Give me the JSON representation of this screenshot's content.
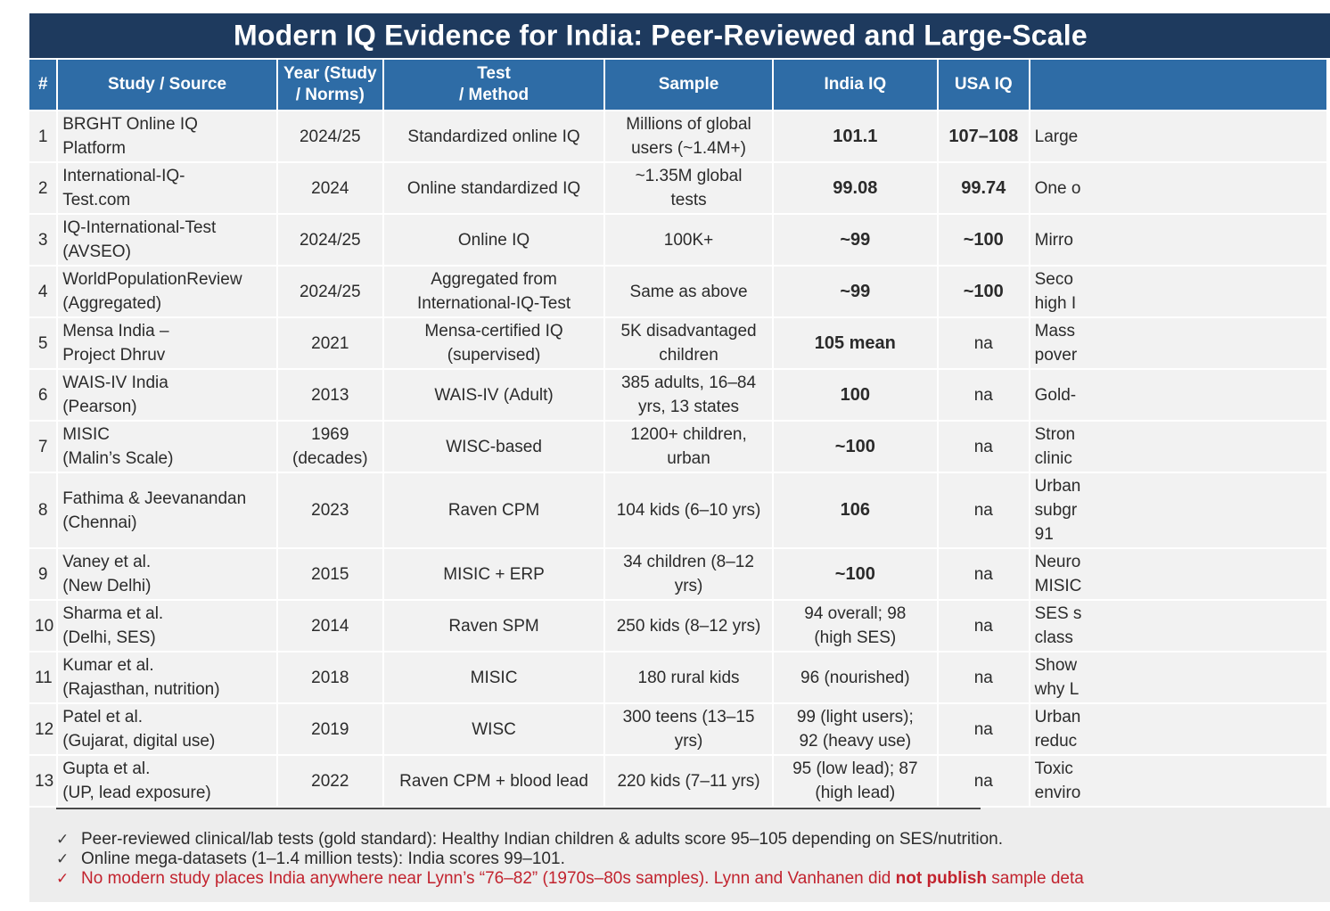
{
  "colors": {
    "title_bg": "#1e3a5e",
    "header_bg": "#2e6ca6",
    "row_bg": "#f2f2f2",
    "band_bg": "#ededed",
    "text": "#2b2b2b",
    "red": "#c2232e"
  },
  "chart_data": {
    "type": "table",
    "title": "Modern IQ Evidence for India: Peer-Reviewed and Large-Scale",
    "columns": [
      {
        "label": "#"
      },
      {
        "label": "Study / Source"
      },
      {
        "label": "Year (Study\n/ Norms)"
      },
      {
        "label": "Test\n/ Method"
      },
      {
        "label": "Sample"
      },
      {
        "label": "India IQ"
      },
      {
        "label": "USA IQ"
      },
      {
        "label": ""
      }
    ],
    "rows": [
      {
        "num": "1",
        "study": "BRGHT Online IQ\nPlatform",
        "year": "2024/25",
        "test": "Standardized online IQ",
        "sample": "Millions of global\nusers (~1.4M+)",
        "india_iq": "101.1",
        "india_iq_bold": true,
        "usa_iq": "107–108",
        "usa_iq_bold": true,
        "notes": "Large"
      },
      {
        "num": "2",
        "study": "International-IQ-\nTest.com",
        "year": "2024",
        "test": "Online standardized IQ",
        "sample": "~1.35M global\ntests",
        "india_iq": "99.08",
        "india_iq_bold": true,
        "usa_iq": "99.74",
        "usa_iq_bold": true,
        "notes": "One o"
      },
      {
        "num": "3",
        "study": "IQ-International-Test\n(AVSEO)",
        "year": "2024/25",
        "test": "Online IQ",
        "sample": "100K+",
        "india_iq": "~99",
        "india_iq_bold": true,
        "usa_iq": "~100",
        "usa_iq_bold": true,
        "notes": "Mirro"
      },
      {
        "num": "4",
        "study": "WorldPopulationReview\n(Aggregated)",
        "year": "2024/25",
        "test": "Aggregated from\nInternational-IQ-Test",
        "sample": "Same as above",
        "india_iq": "~99",
        "india_iq_bold": true,
        "usa_iq": "~100",
        "usa_iq_bold": true,
        "notes": "Seco\nhigh I"
      },
      {
        "num": "5",
        "study": "Mensa India –\nProject Dhruv",
        "year": "2021",
        "test": "Mensa-certified IQ\n(supervised)",
        "sample": "5K disadvantaged\nchildren",
        "india_iq": "105 mean",
        "india_iq_bold": true,
        "usa_iq": "na",
        "usa_iq_bold": false,
        "notes": "Mass\npover"
      },
      {
        "num": "6",
        "study": "WAIS-IV India\n(Pearson)",
        "year": "2013",
        "test": "WAIS-IV (Adult)",
        "sample": "385 adults, 16–84\nyrs, 13 states",
        "india_iq": "100",
        "india_iq_bold": true,
        "usa_iq": "na",
        "usa_iq_bold": false,
        "notes": "Gold-"
      },
      {
        "num": "7",
        "study": "MISIC\n(Malin’s Scale)",
        "year": "1969\n(decades)",
        "test": "WISC-based",
        "sample": "1200+ children,\nurban",
        "india_iq": "~100",
        "india_iq_bold": true,
        "usa_iq": "na",
        "usa_iq_bold": false,
        "notes": "Stron\nclinic"
      },
      {
        "num": "8",
        "study": "Fathima & Jeevanandan\n(Chennai)",
        "year": "2023",
        "test": "Raven CPM",
        "sample": "104 kids (6–10 yrs)",
        "india_iq": "106",
        "india_iq_bold": true,
        "usa_iq": "na",
        "usa_iq_bold": false,
        "notes": "Urban\nsubgr\n91"
      },
      {
        "num": "9",
        "study": "Vaney et al.\n(New Delhi)",
        "year": "2015",
        "test": "MISIC + ERP",
        "sample": "34 children (8–12\nyrs)",
        "india_iq": "~100",
        "india_iq_bold": true,
        "usa_iq": "na",
        "usa_iq_bold": false,
        "notes": "Neuro\nMISIC"
      },
      {
        "num": "10",
        "study": "Sharma et al.\n(Delhi, SES)",
        "year": "2014",
        "test": "Raven SPM",
        "sample": "250 kids (8–12 yrs)",
        "india_iq": "94 overall; 98\n(high SES)",
        "india_iq_bold": false,
        "usa_iq": "na",
        "usa_iq_bold": false,
        "notes": "SES s\nclass"
      },
      {
        "num": "11",
        "study": "Kumar et al.\n(Rajasthan, nutrition)",
        "year": "2018",
        "test": "MISIC",
        "sample": "180 rural kids",
        "india_iq": "96 (nourished)",
        "india_iq_bold": false,
        "usa_iq": "na",
        "usa_iq_bold": false,
        "notes": "Show\nwhy L"
      },
      {
        "num": "12",
        "study": "Patel et al.\n(Gujarat, digital use)",
        "year": "2019",
        "test": "WISC",
        "sample": "300 teens (13–15\nyrs)",
        "india_iq": "99 (light users);\n92 (heavy use)",
        "india_iq_bold": false,
        "usa_iq": "na",
        "usa_iq_bold": false,
        "notes": "Urban\nreduc"
      },
      {
        "num": "13",
        "study": "Gupta et al.\n(UP, lead exposure)",
        "year": "2022",
        "test": "Raven CPM + blood lead",
        "sample": "220 kids (7–11 yrs)",
        "india_iq": "95 (low lead); 87\n(high lead)",
        "india_iq_bold": false,
        "usa_iq": "na",
        "usa_iq_bold": false,
        "notes": "Toxic\nenviro"
      }
    ]
  },
  "footnotes": {
    "check_glyph": "✓",
    "items": [
      {
        "color": "dark",
        "segments": [
          {
            "text": "Peer-reviewed clinical/lab tests (gold standard): Healthy Indian children & adults score 95–105 depending on SES/nutrition.",
            "bold": false
          }
        ]
      },
      {
        "color": "dark",
        "segments": [
          {
            "text": "Online mega-datasets (1–1.4 million tests): India scores 99–101.",
            "bold": false
          }
        ]
      },
      {
        "color": "red",
        "segments": [
          {
            "text": "No modern study places India anywhere near Lynn’s “76–82” (1970s–80s samples). Lynn and Vanhanen did ",
            "bold": false
          },
          {
            "text": "not publish",
            "bold": true
          },
          {
            "text": " sample deta",
            "bold": false
          }
        ]
      }
    ]
  }
}
